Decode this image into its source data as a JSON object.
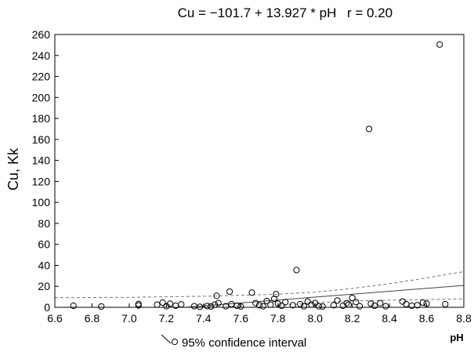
{
  "chart_data": {
    "type": "scatter",
    "title": "Cu = −101.7 + 13.927 * pH",
    "title_r": "r = 0.20",
    "xlabel": "pH",
    "ylabel": "Cu, Kk",
    "xlim": [
      6.6,
      8.8
    ],
    "ylim": [
      0,
      260
    ],
    "xticks": [
      "6.6",
      "6.8",
      "7.0",
      "7.2",
      "7.4",
      "7.6",
      "7.8",
      "8.0",
      "8.2",
      "8.4",
      "8.6",
      "8.8"
    ],
    "yticks": [
      "0",
      "20",
      "40",
      "60",
      "80",
      "100",
      "120",
      "140",
      "160",
      "180",
      "200",
      "220",
      "240",
      "260"
    ],
    "grid": false,
    "legend_position": "bottom-left",
    "legend_label": "95% confidence interval",
    "regression": {
      "intercept": -101.7,
      "slope": 13.927
    },
    "confidence_band": {
      "x": [
        6.6,
        7.0,
        7.4,
        7.8,
        8.0,
        8.2,
        8.4,
        8.6,
        8.8
      ],
      "upper": [
        9.2,
        9.5,
        10.5,
        12.5,
        14.5,
        18.0,
        22.5,
        28.0,
        34.0
      ],
      "lower": [
        -22.0,
        -14.5,
        -7.0,
        1.5,
        4.5,
        6.0,
        6.8,
        7.4,
        8.0
      ]
    },
    "points": [
      {
        "x": 6.7,
        "y": 1.5
      },
      {
        "x": 6.85,
        "y": 0.8
      },
      {
        "x": 7.05,
        "y": 1.8
      },
      {
        "x": 7.05,
        "y": 3.2
      },
      {
        "x": 7.15,
        "y": 2.5
      },
      {
        "x": 7.18,
        "y": 4.5
      },
      {
        "x": 7.2,
        "y": 1.0
      },
      {
        "x": 7.22,
        "y": 3.5
      },
      {
        "x": 7.25,
        "y": 1.5
      },
      {
        "x": 7.28,
        "y": 2.8
      },
      {
        "x": 7.35,
        "y": 1.0
      },
      {
        "x": 7.38,
        "y": 0.5
      },
      {
        "x": 7.42,
        "y": 1.2
      },
      {
        "x": 7.44,
        "y": 0.8
      },
      {
        "x": 7.46,
        "y": 2.5
      },
      {
        "x": 7.47,
        "y": 11.0
      },
      {
        "x": 7.48,
        "y": 4.0
      },
      {
        "x": 7.52,
        "y": 1.0
      },
      {
        "x": 7.54,
        "y": 15.0
      },
      {
        "x": 7.55,
        "y": 3.0
      },
      {
        "x": 7.58,
        "y": 1.5
      },
      {
        "x": 7.6,
        "y": 0.8
      },
      {
        "x": 7.66,
        "y": 14.0
      },
      {
        "x": 7.68,
        "y": 4.0
      },
      {
        "x": 7.7,
        "y": 2.0
      },
      {
        "x": 7.72,
        "y": 1.0
      },
      {
        "x": 7.74,
        "y": 6.0
      },
      {
        "x": 7.76,
        "y": 2.5
      },
      {
        "x": 7.78,
        "y": 8.0
      },
      {
        "x": 7.79,
        "y": 12.5
      },
      {
        "x": 7.8,
        "y": 3.5
      },
      {
        "x": 7.82,
        "y": 1.5
      },
      {
        "x": 7.84,
        "y": 5.0
      },
      {
        "x": 7.88,
        "y": 2.0
      },
      {
        "x": 7.9,
        "y": 35.5
      },
      {
        "x": 7.92,
        "y": 3.0
      },
      {
        "x": 7.94,
        "y": 1.0
      },
      {
        "x": 7.96,
        "y": 5.5
      },
      {
        "x": 7.98,
        "y": 2.5
      },
      {
        "x": 8.0,
        "y": 4.0
      },
      {
        "x": 8.02,
        "y": 1.0
      },
      {
        "x": 8.04,
        "y": 0.8
      },
      {
        "x": 8.1,
        "y": 2.0
      },
      {
        "x": 8.12,
        "y": 6.5
      },
      {
        "x": 8.15,
        "y": 1.5
      },
      {
        "x": 8.17,
        "y": 4.0
      },
      {
        "x": 8.18,
        "y": 2.5
      },
      {
        "x": 8.2,
        "y": 9.0
      },
      {
        "x": 8.22,
        "y": 5.0
      },
      {
        "x": 8.24,
        "y": 1.0
      },
      {
        "x": 8.29,
        "y": 170.0
      },
      {
        "x": 8.3,
        "y": 3.5
      },
      {
        "x": 8.32,
        "y": 1.5
      },
      {
        "x": 8.35,
        "y": 4.0
      },
      {
        "x": 8.38,
        "y": 1.0
      },
      {
        "x": 8.47,
        "y": 5.5
      },
      {
        "x": 8.49,
        "y": 3.0
      },
      {
        "x": 8.52,
        "y": 1.5
      },
      {
        "x": 8.55,
        "y": 2.0
      },
      {
        "x": 8.58,
        "y": 4.5
      },
      {
        "x": 8.6,
        "y": 3.5
      },
      {
        "x": 8.67,
        "y": 250.5
      },
      {
        "x": 8.7,
        "y": 3.0
      }
    ]
  }
}
